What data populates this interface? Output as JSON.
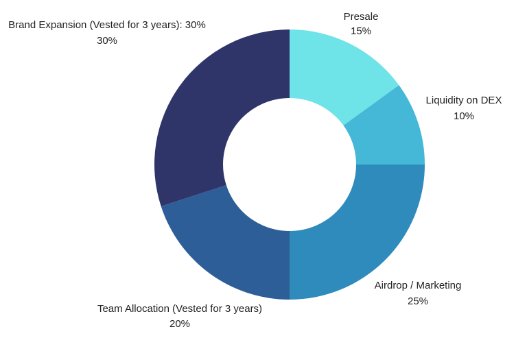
{
  "chart_data": {
    "type": "pie",
    "donut": true,
    "start_angle_deg": 0,
    "direction": "clockwise",
    "slices": [
      {
        "label": "Presale",
        "value_label": "15%",
        "value": 15,
        "color": "#6ee3e8"
      },
      {
        "label": "Liquidity on DEX",
        "value_label": "10%",
        "value": 10,
        "color": "#45b8d8"
      },
      {
        "label": "Airdrop / Marketing",
        "value_label": "25%",
        "value": 25,
        "color": "#2e8bbb"
      },
      {
        "label": "Team Allocation (Vested for 3 years)",
        "value_label": "20%",
        "value": 20,
        "color": "#2e5e98"
      },
      {
        "label": "Brand Expansion (Vested for 3 years): 30%",
        "value_label": "30%",
        "value": 30,
        "color": "#2f3469"
      }
    ]
  }
}
